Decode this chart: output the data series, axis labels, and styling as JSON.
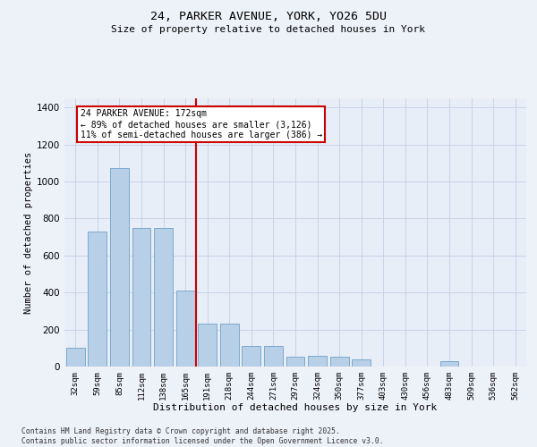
{
  "title_line1": "24, PARKER AVENUE, YORK, YO26 5DU",
  "title_line2": "Size of property relative to detached houses in York",
  "xlabel": "Distribution of detached houses by size in York",
  "ylabel": "Number of detached properties",
  "categories": [
    "32sqm",
    "59sqm",
    "85sqm",
    "112sqm",
    "138sqm",
    "165sqm",
    "191sqm",
    "218sqm",
    "244sqm",
    "271sqm",
    "297sqm",
    "324sqm",
    "350sqm",
    "377sqm",
    "403sqm",
    "430sqm",
    "456sqm",
    "483sqm",
    "509sqm",
    "536sqm",
    "562sqm"
  ],
  "values": [
    100,
    730,
    1075,
    750,
    750,
    410,
    230,
    230,
    110,
    110,
    55,
    60,
    55,
    40,
    0,
    0,
    0,
    30,
    0,
    0,
    0
  ],
  "bar_color": "#b8cfe8",
  "bar_edge_color": "#6fa0c8",
  "vline_x_index": 5.5,
  "vline_color": "#cc0000",
  "annotation_title": "24 PARKER AVENUE: 172sqm",
  "annotation_line1": "← 89% of detached houses are smaller (3,126)",
  "annotation_line2": "11% of semi-detached houses are larger (386) →",
  "annotation_box_color": "#cc0000",
  "ylim": [
    0,
    1450
  ],
  "yticks": [
    0,
    200,
    400,
    600,
    800,
    1000,
    1200,
    1400
  ],
  "grid_color": "#c8d4e8",
  "bg_color": "#e8eef8",
  "fig_bg_color": "#edf1f8",
  "footer_line1": "Contains HM Land Registry data © Crown copyright and database right 2025.",
  "footer_line2": "Contains public sector information licensed under the Open Government Licence v3.0."
}
